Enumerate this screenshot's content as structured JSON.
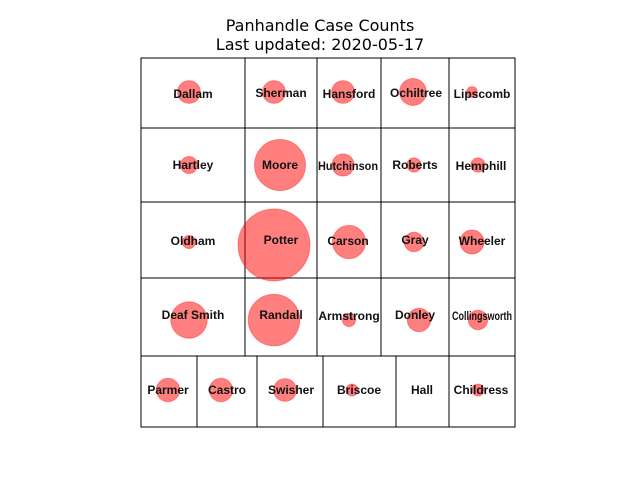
{
  "title": "Panhandle Case Counts",
  "subtitle": "Last updated: 2020-05-17",
  "marker_color": "#ff0000",
  "counties": [
    {
      "name": "Dallam",
      "cases": 18
    },
    {
      "name": "Sherman",
      "cases": 18
    },
    {
      "name": "Hansford",
      "cases": 18
    },
    {
      "name": "Ochiltree",
      "cases": 25
    },
    {
      "name": "Lipscomb",
      "cases": 4
    },
    {
      "name": "Hartley",
      "cases": 10
    },
    {
      "name": "Moore",
      "cases": 90
    },
    {
      "name": "Hutchinson",
      "cases": 17
    },
    {
      "name": "Roberts",
      "cases": 7
    },
    {
      "name": "Hemphill",
      "cases": 7
    },
    {
      "name": "Oldham",
      "cases": 6
    },
    {
      "name": "Potter",
      "cases": 179
    },
    {
      "name": "Carson",
      "cases": 38
    },
    {
      "name": "Gray",
      "cases": 13
    },
    {
      "name": "Wheeler",
      "cases": 20
    },
    {
      "name": "Deaf Smith",
      "cases": 46
    },
    {
      "name": "Randall",
      "cases": 92
    },
    {
      "name": "Armstrong",
      "cases": 6
    },
    {
      "name": "Donley",
      "cases": 19
    },
    {
      "name": "Collingsworth",
      "cases": 13
    },
    {
      "name": "Parmer",
      "cases": 19
    },
    {
      "name": "Castro",
      "cases": 19
    },
    {
      "name": "Swisher",
      "cases": 18
    },
    {
      "name": "Briscoe",
      "cases": 5
    },
    {
      "name": "Hall",
      "cases": 0
    },
    {
      "name": "Childress",
      "cases": 5
    }
  ]
}
